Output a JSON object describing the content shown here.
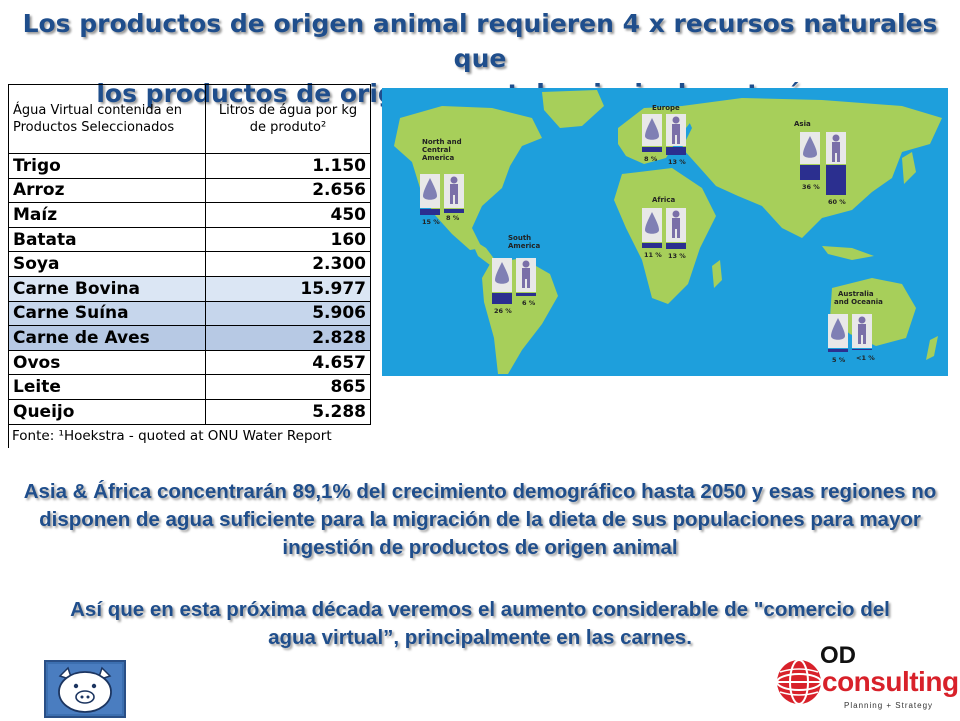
{
  "title": {
    "line1": "Los productos de origen animal requieren 4 x recursos naturales que",
    "line2": "los productos de origen vegetal, principalmente água."
  },
  "table": {
    "header_col1": "Água Virtual contenida en Productos Seleccionados",
    "header_col2": "Litros de água por kg de produto²",
    "rows": [
      {
        "product": "Trigo",
        "liters": "1.150"
      },
      {
        "product": "Arroz",
        "liters": "2.656"
      },
      {
        "product": "Maíz",
        "liters": "450"
      },
      {
        "product": "Batata",
        "liters": "160"
      },
      {
        "product": "Soya",
        "liters": "2.300"
      },
      {
        "product": "Carne Bovina",
        "liters": "15.977"
      },
      {
        "product": "Carne Suína",
        "liters": "5.906"
      },
      {
        "product": "Carne de Aves",
        "liters": "2.828"
      },
      {
        "product": "Ovos",
        "liters": "4.657"
      },
      {
        "product": "Leite",
        "liters": "865"
      },
      {
        "product": "Queijo",
        "liters": "5.288"
      }
    ],
    "source": "Fonte: ¹Hoekstra  - quoted at ONU Water Report"
  },
  "map": {
    "regions": {
      "north_america": {
        "label1": "North and",
        "label2": "Central",
        "label3": "America",
        "water": "15 %",
        "pop": "8 %"
      },
      "europe": {
        "label1": "Europe",
        "water": "8 %",
        "pop": "13 %"
      },
      "asia": {
        "label1": "Asia",
        "water": "36 %",
        "pop": "60 %"
      },
      "africa": {
        "label1": "Africa",
        "water": "11 %",
        "pop": "13 %"
      },
      "south_america": {
        "label1": "South",
        "label2": "America",
        "water": "26 %",
        "pop": "6 %"
      },
      "oceania": {
        "label1": "Australia",
        "label2": "and Oceania",
        "water": "5 %",
        "pop": "<1 %"
      }
    },
    "colors": {
      "ocean": "#1e9fdc",
      "land": "#a7cf5a",
      "bar": "#2b2f8f"
    }
  },
  "paragraph1": "Asia & África concentrarán 89,1% del crecimiento demográfico hasta 2050 y esas regiones no disponen de agua suficiente para la migración de la dieta de sus populaciones para mayor ingestión de productos de origen animal",
  "paragraph2": "Así que en esta próxima década veremos el aumento considerable de \"comercio del agua virtual”, principalmente en las carnes.",
  "logo": {
    "od": "OD",
    "consulting": "consulting",
    "tagline": "Planning + Strategy"
  }
}
